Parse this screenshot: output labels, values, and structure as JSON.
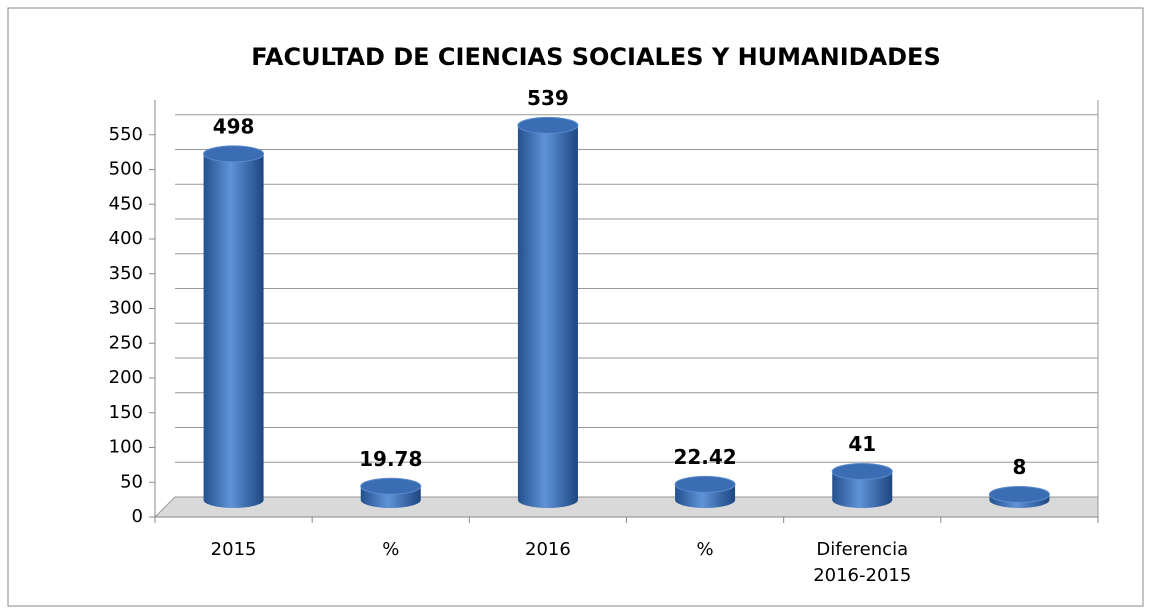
{
  "chart_data": {
    "type": "bar",
    "title": "FACULTAD DE CIENCIAS SOCIALES Y HUMANIDADES",
    "categories": [
      "2015",
      "%",
      "2016",
      "%",
      "Diferencia\n2016-2015",
      null
    ],
    "values": [
      498,
      19.78,
      539,
      22.42,
      41,
      8
    ],
    "color": "#3a6db3",
    "ylim": [
      0,
      600
    ],
    "yticks": [
      0,
      50,
      100,
      150,
      200,
      250,
      300,
      350,
      400,
      450,
      500,
      550
    ],
    "grid": true
  }
}
